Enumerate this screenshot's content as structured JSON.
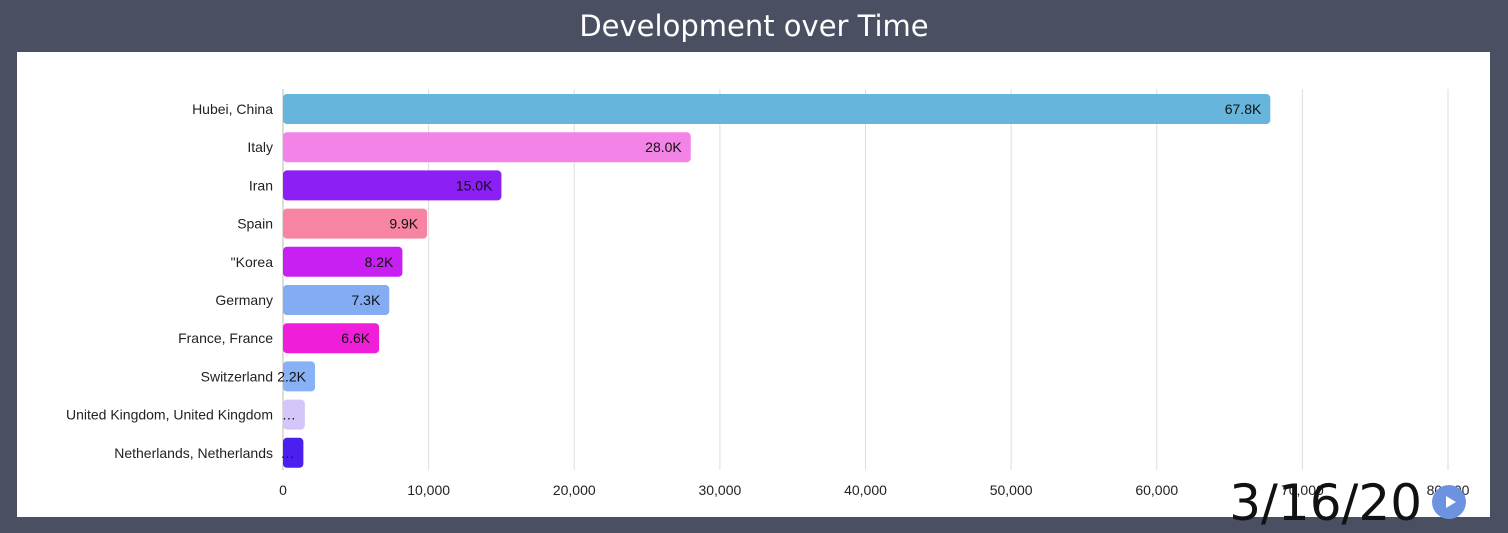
{
  "header": {
    "title": "Development over Time"
  },
  "player": {
    "date": "3/16/20"
  },
  "colors": {
    "background": "#4a5061",
    "panel": "#ffffff",
    "grid": "#dddddd",
    "play_button": "#6c93df"
  },
  "chart_data": {
    "type": "bar",
    "orientation": "horizontal",
    "title": "Development over Time",
    "categories": [
      "Hubei, China",
      "Italy",
      "Iran",
      "Spain",
      "\"Korea",
      "Germany",
      "France, France",
      "Switzerland",
      "United Kingdom, United Kingdom",
      "Netherlands, Netherlands"
    ],
    "values": [
      67800,
      28000,
      15000,
      9900,
      8200,
      7300,
      6600,
      2200,
      1500,
      1400
    ],
    "value_labels": [
      "67.8K",
      "28.0K",
      "15.0K",
      "9.9K",
      "8.2K",
      "7.3K",
      "6.6K",
      "2.2K",
      "…",
      "…"
    ],
    "bar_colors": [
      "#67b5dc",
      "#f383e6",
      "#8b1ff4",
      "#f784a2",
      "#c81ff2",
      "#83acf2",
      "#f01ed9",
      "#89b1f5",
      "#d4c6fa",
      "#4a1ff0"
    ],
    "xlim": [
      0,
      80000
    ],
    "x_ticks": [
      0,
      10000,
      20000,
      30000,
      40000,
      50000,
      60000,
      70000,
      80000
    ],
    "x_tick_labels": [
      "0",
      "10,000",
      "20,000",
      "30,000",
      "40,000",
      "50,000",
      "60,000",
      "70,000",
      "80,000"
    ],
    "grid": true,
    "legend": "none"
  }
}
